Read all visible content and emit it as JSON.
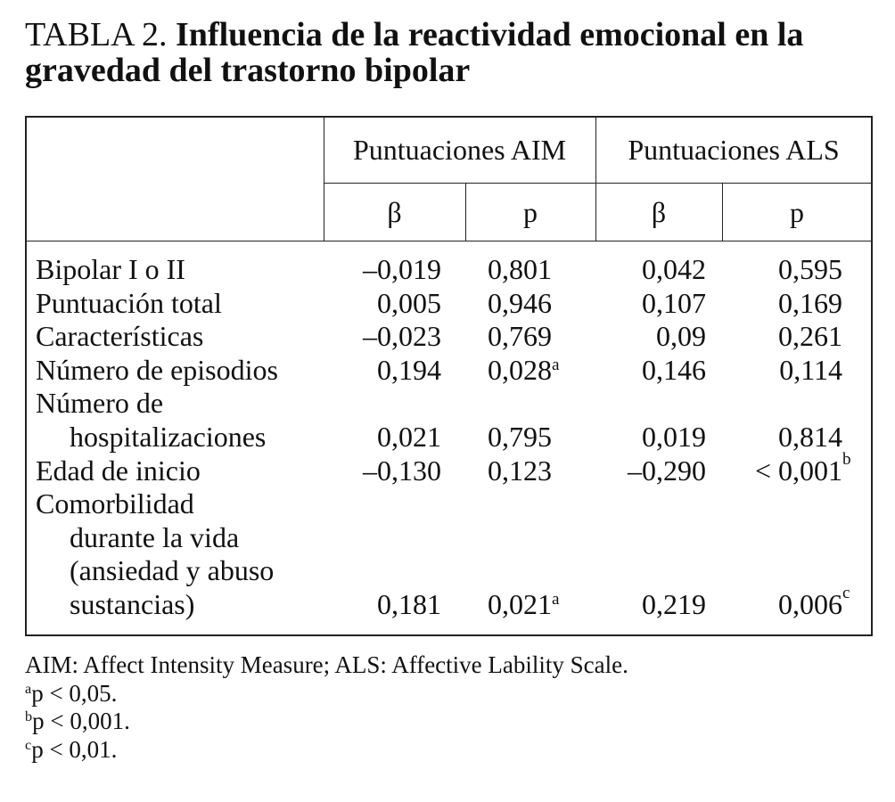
{
  "header": {
    "label": "TABLA 2.",
    "title": "Influencia de la reactividad emocional en la gravedad del trastorno bipolar"
  },
  "table": {
    "groups": [
      "Puntuaciones AIM",
      "Puntuaciones ALS"
    ],
    "columns": [
      "β",
      "p",
      "β",
      "p"
    ],
    "rows": [
      {
        "label": [
          "Bipolar I o II"
        ],
        "cells": [
          {
            "text": "–0,019"
          },
          {
            "text": "0,801"
          },
          {
            "text": "0,042"
          },
          {
            "text": "0,595"
          }
        ]
      },
      {
        "label": [
          "Puntuación total"
        ],
        "cells": [
          {
            "text": "0,005"
          },
          {
            "text": "0,946"
          },
          {
            "text": "0,107"
          },
          {
            "text": "0,169"
          }
        ]
      },
      {
        "label": [
          "Características"
        ],
        "cells": [
          {
            "text": "–0,023"
          },
          {
            "text": "0,769"
          },
          {
            "text": "0,09"
          },
          {
            "text": "0,261"
          }
        ]
      },
      {
        "label": [
          "Número de episodios"
        ],
        "cells": [
          {
            "text": "0,194"
          },
          {
            "text": "0,028",
            "sup": "a"
          },
          {
            "text": "0,146"
          },
          {
            "text": "0,114"
          }
        ]
      },
      {
        "label": [
          "Número de",
          "hospitalizaciones"
        ],
        "cells": [
          {
            "text": "0,021"
          },
          {
            "text": "0,795"
          },
          {
            "text": "0,019"
          },
          {
            "text": "0,814"
          }
        ]
      },
      {
        "label": [
          "Edad de inicio"
        ],
        "cells": [
          {
            "text": "–0,130"
          },
          {
            "text": "0,123"
          },
          {
            "text": "–0,290"
          },
          {
            "text": "< 0,001",
            "sup": "b"
          }
        ]
      },
      {
        "label": [
          "Comorbilidad",
          "durante la vida",
          "(ansiedad y abuso",
          "sustancias)"
        ],
        "cells": [
          {
            "text": "0,181"
          },
          {
            "text": "0,021",
            "sup": "a"
          },
          {
            "text": "0,219"
          },
          {
            "text": "0,006",
            "sup": "c"
          }
        ]
      }
    ]
  },
  "footnotes": [
    {
      "text": "AIM: Affect Intensity Measure; ALS: Affective Lability Scale."
    },
    {
      "sup": "a",
      "text": "p < 0,05."
    },
    {
      "sup": "b",
      "text": "p < 0,001."
    },
    {
      "sup": "c",
      "text": "p < 0,01."
    }
  ]
}
